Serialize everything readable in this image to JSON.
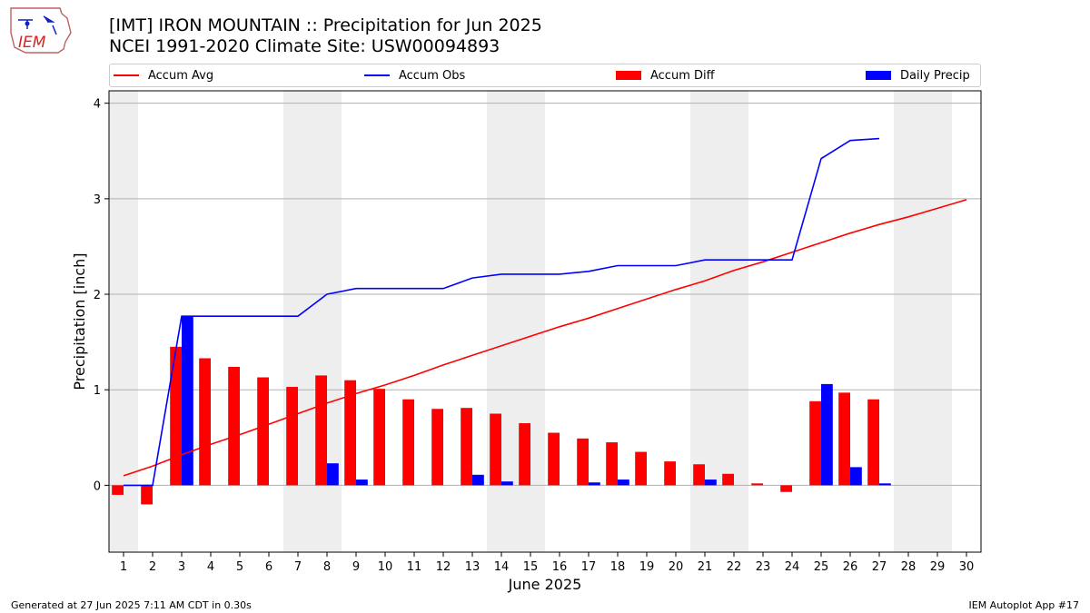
{
  "logo": {
    "text": "IEM"
  },
  "title_line1": "[IMT] IRON MOUNTAIN :: Precipitation for Jun 2025",
  "title_line2": "NCEI 1991-2020 Climate Site: USW00094893",
  "footer_left": "Generated at 27 Jun 2025 7:11 AM CDT in 0.30s",
  "footer_right": "IEM Autoplot App #17",
  "colors": {
    "avg": "#ff0000",
    "obs": "#0000ff",
    "diff": "#ff0000",
    "daily": "#0000ff",
    "weekend_shade": "#eeeeee",
    "grid": "#b0b0b0"
  },
  "chart_data": {
    "type": "bar",
    "xlabel": "June 2025",
    "ylabel": "Precipitation [inch]",
    "xlim": [
      0.5,
      30.5
    ],
    "ylim": [
      -0.7,
      4.13
    ],
    "yticks": [
      0,
      1,
      2,
      3,
      4
    ],
    "grid": true,
    "legend_position": "top",
    "shaded_weekend_days": [
      1,
      7,
      8,
      14,
      15,
      21,
      22,
      28,
      29
    ],
    "days": [
      1,
      2,
      3,
      4,
      5,
      6,
      7,
      8,
      9,
      10,
      11,
      12,
      13,
      14,
      15,
      16,
      17,
      18,
      19,
      20,
      21,
      22,
      23,
      24,
      25,
      26,
      27,
      28,
      29,
      30
    ],
    "series": [
      {
        "name": "Accum Avg",
        "kind": "line",
        "values": [
          0.1,
          0.2,
          0.32,
          0.43,
          0.53,
          0.64,
          0.75,
          0.86,
          0.96,
          1.05,
          1.15,
          1.26,
          1.36,
          1.46,
          1.56,
          1.66,
          1.75,
          1.85,
          1.95,
          2.05,
          2.14,
          2.25,
          2.34,
          2.44,
          2.54,
          2.64,
          2.73,
          2.81,
          2.9,
          2.99
        ]
      },
      {
        "name": "Accum Obs",
        "kind": "line",
        "values": [
          0.0,
          0.0,
          1.77,
          1.77,
          1.77,
          1.77,
          1.77,
          2.0,
          2.06,
          2.06,
          2.06,
          2.06,
          2.17,
          2.21,
          2.21,
          2.21,
          2.24,
          2.3,
          2.3,
          2.3,
          2.36,
          2.36,
          2.36,
          2.36,
          3.42,
          3.61,
          3.63,
          null,
          null,
          null
        ]
      },
      {
        "name": "Accum Diff",
        "kind": "bar",
        "values": [
          -0.1,
          -0.2,
          1.45,
          1.33,
          1.24,
          1.13,
          1.03,
          1.15,
          1.1,
          1.01,
          0.9,
          0.8,
          0.81,
          0.75,
          0.65,
          0.55,
          0.49,
          0.45,
          0.35,
          0.25,
          0.22,
          0.12,
          0.02,
          -0.07,
          0.88,
          0.97,
          0.9,
          null,
          null,
          null
        ]
      },
      {
        "name": "Daily Precip",
        "kind": "bar",
        "values": [
          0.0,
          0.0,
          1.77,
          0.0,
          0.0,
          0.0,
          0.0,
          0.23,
          0.06,
          0.0,
          0.0,
          0.0,
          0.11,
          0.04,
          0.0,
          0.0,
          0.03,
          0.06,
          0.0,
          0.0,
          0.06,
          0.0,
          0.0,
          0.0,
          1.06,
          0.19,
          0.02,
          null,
          null,
          null
        ]
      }
    ]
  }
}
